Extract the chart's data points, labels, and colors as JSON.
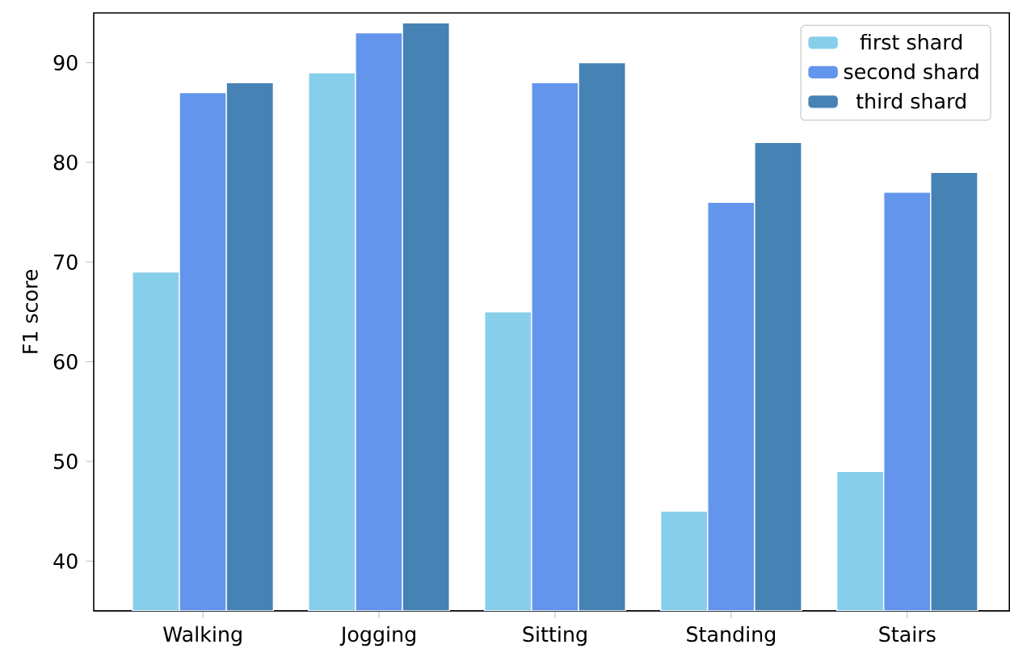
{
  "chart_data": {
    "type": "bar",
    "ylabel": "F1 score",
    "categories": [
      "Walking",
      "Jogging",
      "Sitting",
      "Standing",
      "Stairs"
    ],
    "series": [
      {
        "name": "first shard",
        "color": "#87ceeb",
        "values": [
          69,
          89,
          65,
          45,
          49
        ]
      },
      {
        "name": "second shard",
        "color": "#6495ed",
        "values": [
          87,
          93,
          88,
          76,
          77
        ]
      },
      {
        "name": "third shard",
        "color": "#4682b4",
        "values": [
          88,
          94,
          90,
          82,
          79
        ]
      }
    ],
    "ylim": [
      35,
      95
    ],
    "yticks": [
      40,
      50,
      60,
      70,
      80,
      90
    ],
    "legend": "top right",
    "grid": false
  }
}
